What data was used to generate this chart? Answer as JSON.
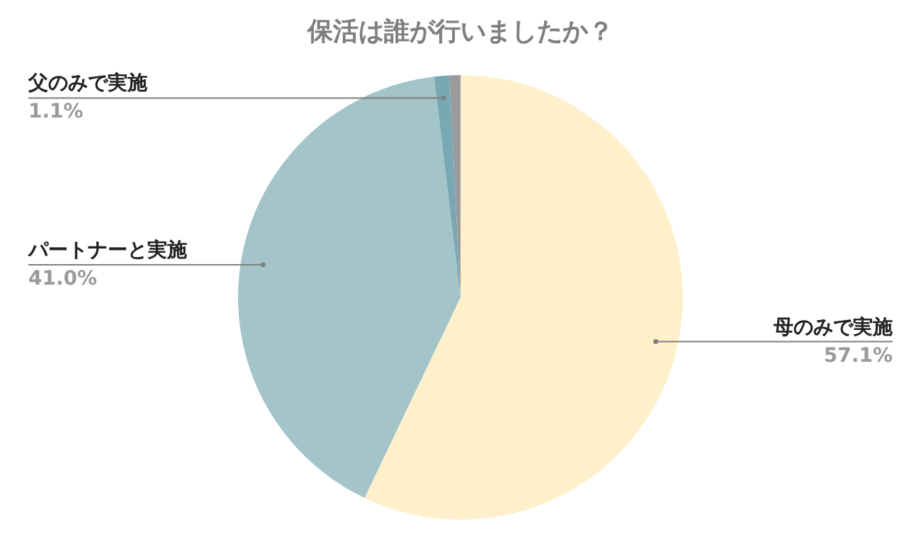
{
  "chart_data": {
    "type": "pie",
    "title": "保活は誰が行いましたか？",
    "categories": [
      "母のみで実施",
      "パートナーと実施",
      "父のみで実施",
      null
    ],
    "values": [
      57.1,
      41.0,
      1.1,
      0.8
    ],
    "colors": [
      "#fff0cc",
      "#a3c4c9",
      "#78a8b4",
      "#9a9a9a"
    ],
    "value_labels": [
      "57.1%",
      "41.0%",
      "1.1%",
      null
    ]
  }
}
